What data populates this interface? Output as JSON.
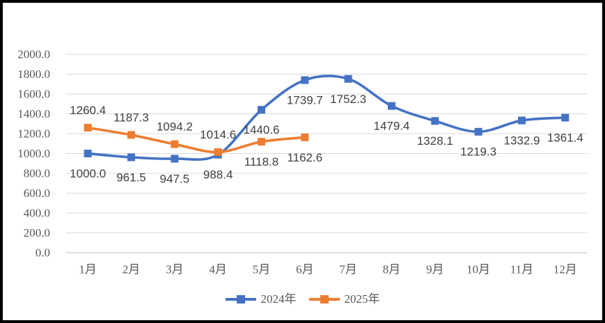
{
  "chart_data": {
    "type": "line",
    "title": "",
    "categories": [
      "1月",
      "2月",
      "3月",
      "4月",
      "5月",
      "6月",
      "7月",
      "8月",
      "9月",
      "10月",
      "11月",
      "12月"
    ],
    "series": [
      {
        "name": "2024年",
        "color": "#4472C4",
        "values": [
          1000.0,
          961.5,
          947.5,
          988.4,
          1440.6,
          1739.7,
          1752.3,
          1479.4,
          1328.1,
          1219.3,
          1332.9,
          1361.4
        ],
        "label_positions": [
          "below",
          "below",
          "below",
          "below",
          "below",
          "below",
          "below",
          "below",
          "below",
          "below",
          "below",
          "below"
        ]
      },
      {
        "name": "2025年",
        "color": "#ED7D31",
        "values": [
          1260.4,
          1187.3,
          1094.2,
          1014.6,
          1118.8,
          1162.6
        ],
        "label_positions": [
          "above",
          "above",
          "above",
          "above",
          "below",
          "below"
        ]
      }
    ],
    "xlabel": "",
    "ylabel": "",
    "ylim": [
      0,
      2000
    ],
    "ytick_step": 200,
    "ytick_labels": [
      "0.0",
      "200.0",
      "400.0",
      "600.0",
      "800.0",
      "1000.0",
      "1200.0",
      "1400.0",
      "1600.0",
      "1800.0",
      "2000.0"
    ],
    "grid": true,
    "smooth": true,
    "marker": "square",
    "data_labels": true,
    "data_label_decimals": 1,
    "legend_position": "bottom"
  },
  "colors": {
    "grid": "#D9D9D9",
    "axis_line": "#BFBFBF",
    "axis_text": "#595959",
    "data_label_text": "#3F3F3F",
    "legend_text": "#595959",
    "background": "#FFFFFF",
    "frame_border": "#000000"
  }
}
